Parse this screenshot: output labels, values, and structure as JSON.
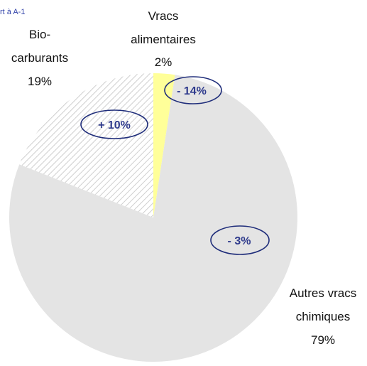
{
  "note": "rt à A-1",
  "chart_data": {
    "type": "pie",
    "start_angle_deg": 0,
    "direction": "clockwise",
    "slices": [
      {
        "label_lines": [
          "Vracs",
          "alimentaires"
        ],
        "value_label": "2%",
        "value": 2.4,
        "change_label": "- 14%",
        "fill": "#ffff99",
        "pattern": "solid"
      },
      {
        "label_lines": [
          "Autres vracs",
          "chimiques"
        ],
        "value_label": "79%",
        "value": 78.6,
        "change_label": "- 3%",
        "fill": "#e4e4e4",
        "pattern": "solid"
      },
      {
        "label_lines": [
          "Bio-",
          "carburants"
        ],
        "value_label": "19%",
        "value": 19.0,
        "change_label": "+ 10%",
        "fill": "#ffffff",
        "pattern": "diagonal-hatch"
      }
    ],
    "colors": {
      "hatch_line": "#cfcfcf",
      "ellipse_stroke": "#1f2d7a",
      "change_text": "#2e3a8c",
      "note_text": "#3344aa"
    }
  }
}
